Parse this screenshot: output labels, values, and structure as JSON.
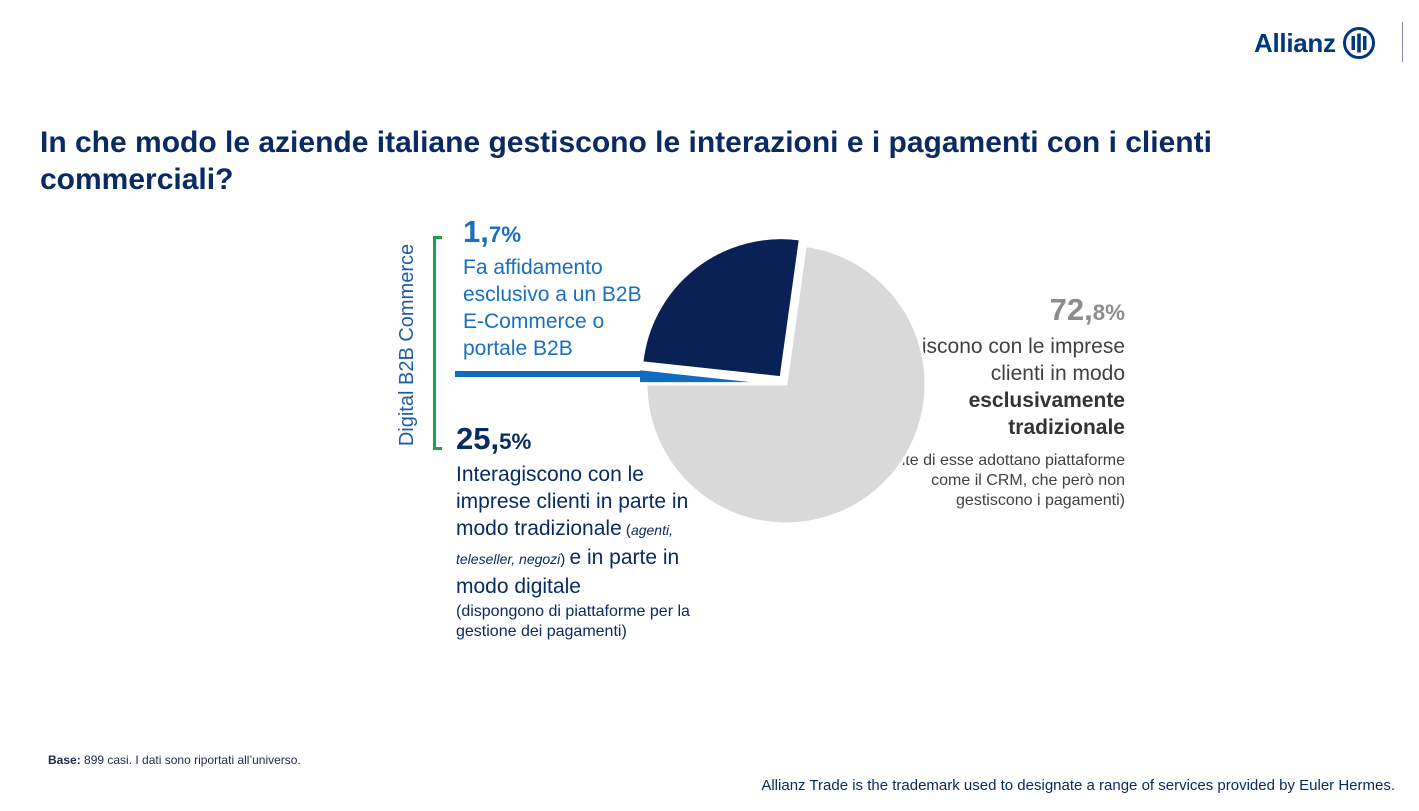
{
  "brand": {
    "name": "Allianz",
    "color": "#003781"
  },
  "title": "In che modo le aziende italiane gestiscono le interazioni e i pagamenti con i clienti commerciali?",
  "bracket_label": "Digital B2B Commerce",
  "segments": {
    "b2b": {
      "pct_int": "1,",
      "pct_dec": "7%",
      "desc": "Fa affidamento esclusivo a un B2B E-Commerce o portale B2B"
    },
    "hybrid": {
      "pct_int": "25,",
      "pct_dec": "5%",
      "desc_a": "Interagiscono con le imprese clienti in parte in modo tradizionale",
      "desc_open": " (",
      "desc_italic": "agenti, teleseller, negozi",
      "desc_close": ") ",
      "desc_b": "e in parte in modo digitale",
      "note": "(dispongono di piattaforme per la gestione dei pagamenti)"
    },
    "traditional": {
      "pct_int": "72,",
      "pct_dec": "8%",
      "desc": "Interagiscono con le imprese clienti in modo",
      "desc_bold": "esclusivamente tradizionale",
      "note": "(molte di esse adottano piattaforme come il CRM, che però non gestiscono i pagamenti)"
    }
  },
  "chart_data": {
    "type": "pie",
    "title": "In che modo le aziende italiane gestiscono le interazioni e i pagamenti con i clienti commerciali?",
    "slices": [
      {
        "label": "Fa affidamento esclusivo a un B2B E-Commerce o portale B2B",
        "value": 1.7,
        "color": "#0f6cc0",
        "exploded": true
      },
      {
        "label": "Interagiscono con le imprese clienti in parte in modo tradizionale e in parte in modo digitale",
        "value": 25.5,
        "color": "#0a2156",
        "exploded": true
      },
      {
        "label": "Interagiscono con le imprese clienti in modo esclusivamente tradizionale",
        "value": 72.8,
        "color": "#d9d9d9",
        "exploded": false
      }
    ],
    "unit": "%"
  },
  "footer": {
    "base_label": "Base:",
    "base_text": " 899 casi. I dati sono riportati all’universo.",
    "trademark": "Allianz Trade is the trademark used to designate a range of services provided by Euler Hermes."
  }
}
